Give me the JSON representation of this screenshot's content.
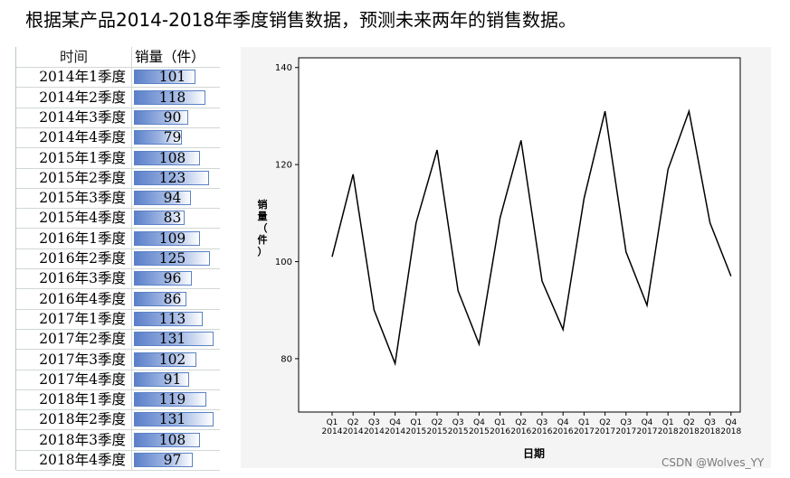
{
  "title": "根据某产品2014-2018年季度销售数据，预测未来两年的销售数据。",
  "table": {
    "headers": [
      "时间",
      "销量（件）"
    ],
    "rows": [
      {
        "period": "2014年1季度",
        "sales": "101"
      },
      {
        "period": "2014年2季度",
        "sales": "118"
      },
      {
        "period": "2014年3季度",
        "sales": "90"
      },
      {
        "period": "2014年4季度",
        "sales": "79"
      },
      {
        "period": "2015年1季度",
        "sales": "108"
      },
      {
        "period": "2015年2季度",
        "sales": "123"
      },
      {
        "period": "2015年3季度",
        "sales": "94"
      },
      {
        "period": "2015年4季度",
        "sales": "83"
      },
      {
        "period": "2016年1季度",
        "sales": "109"
      },
      {
        "period": "2016年2季度",
        "sales": "125"
      },
      {
        "period": "2016年3季度",
        "sales": "96"
      },
      {
        "period": "2016年4季度",
        "sales": "86"
      },
      {
        "period": "2017年1季度",
        "sales": "113"
      },
      {
        "period": "2017年2季度",
        "sales": "131"
      },
      {
        "period": "2017年3季度",
        "sales": "102"
      },
      {
        "period": "2017年4季度",
        "sales": "91"
      },
      {
        "period": "2018年1季度",
        "sales": "119"
      },
      {
        "period": "2018年2季度",
        "sales": "131"
      },
      {
        "period": "2018年3季度",
        "sales": "108"
      },
      {
        "period": "2018年4季度",
        "sales": "97"
      }
    ],
    "databar_max": 131
  },
  "chart_data": {
    "type": "line",
    "xlabel": "日期",
    "ylabel": "销量（件）",
    "ylim": [
      69,
      142
    ],
    "yticks": [
      80,
      100,
      120,
      140
    ],
    "quarters": [
      "Q1",
      "Q2",
      "Q3",
      "Q4",
      "Q1",
      "Q2",
      "Q3",
      "Q4",
      "Q1",
      "Q2",
      "Q3",
      "Q4",
      "Q1",
      "Q2",
      "Q3",
      "Q4",
      "Q1",
      "Q2",
      "Q3",
      "Q4"
    ],
    "years": [
      "2014",
      "2014",
      "2014",
      "2014",
      "2015",
      "2015",
      "2015",
      "2015",
      "2016",
      "2016",
      "2016",
      "2016",
      "2017",
      "2017",
      "2017",
      "2017",
      "2018",
      "2018",
      "2018",
      "2018"
    ],
    "values": [
      101,
      118,
      90,
      79,
      108,
      123,
      94,
      83,
      109,
      125,
      96,
      86,
      113,
      131,
      102,
      91,
      119,
      131,
      108,
      97
    ],
    "line_color": "#000000",
    "grid": false
  },
  "watermark": "CSDN @Wolves_YY"
}
